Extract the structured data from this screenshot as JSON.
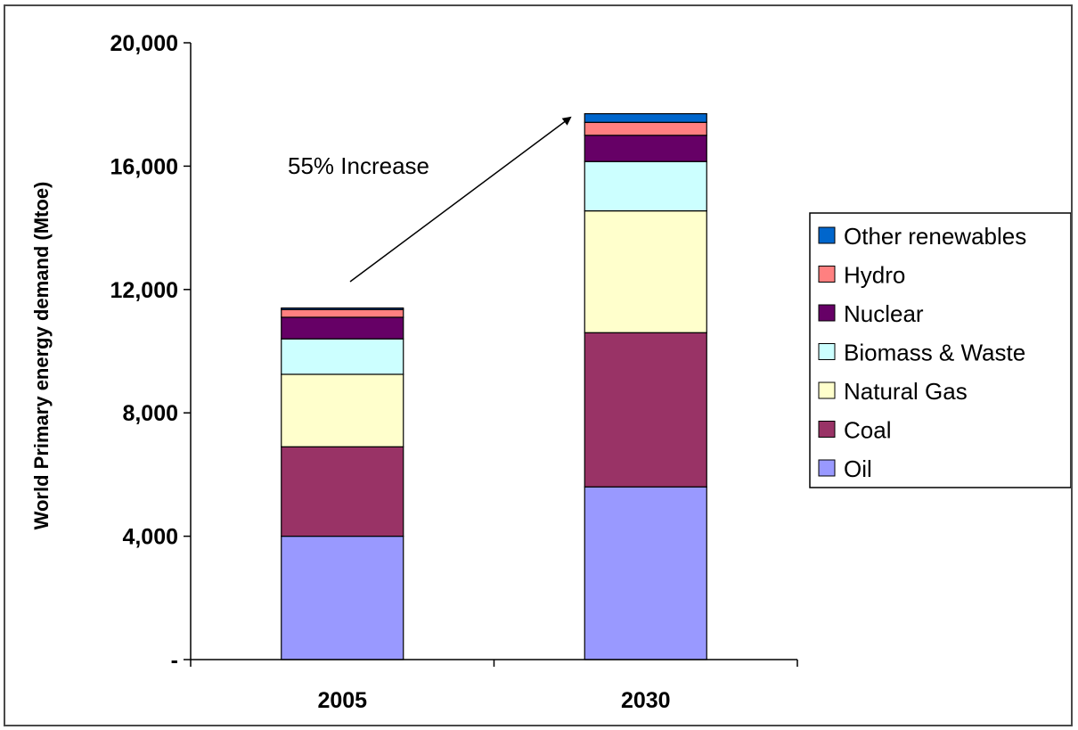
{
  "chart_data": {
    "type": "bar",
    "stacked": true,
    "categories": [
      "2005",
      "2030"
    ],
    "ylabel": "World Primary energy demand (Mtoe)",
    "xlabel": "",
    "ylim": [
      0,
      20000
    ],
    "yticks": [
      0,
      4000,
      8000,
      12000,
      16000,
      20000
    ],
    "ytick_labels": [
      "-",
      "4,000",
      "8,000",
      "12,000",
      "16,000",
      "20,000"
    ],
    "grid": false,
    "legend_position": "right",
    "series": [
      {
        "name": "Oil",
        "color": "#9999ff",
        "values": [
          4000,
          5600
        ]
      },
      {
        "name": "Coal",
        "color": "#993366",
        "values": [
          2900,
          5000
        ]
      },
      {
        "name": "Natural Gas",
        "color": "#ffffcc",
        "values": [
          2350,
          3950
        ]
      },
      {
        "name": "Biomass & Waste",
        "color": "#ccffff",
        "values": [
          1150,
          1600
        ]
      },
      {
        "name": "Nuclear",
        "color": "#660066",
        "values": [
          700,
          850
        ]
      },
      {
        "name": "Hydro",
        "color": "#ff8080",
        "values": [
          250,
          420
        ]
      },
      {
        "name": "Other renewables",
        "color": "#0066cc",
        "values": [
          50,
          280
        ]
      }
    ],
    "annotations": [
      {
        "text": "55% Increase",
        "arrow_from": [
          "2005",
          12000
        ],
        "arrow_to": [
          "2030",
          17700
        ]
      }
    ]
  }
}
